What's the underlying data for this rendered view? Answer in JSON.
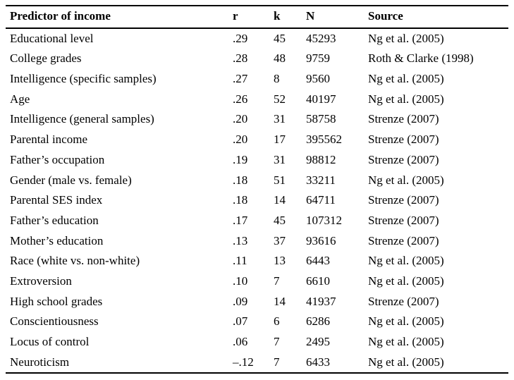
{
  "table": {
    "headers": [
      "Predictor of income",
      "r",
      "k",
      "N",
      "Source"
    ],
    "rows": [
      {
        "predictor": "Educational level",
        "r": ".29",
        "k": "45",
        "n": "45293",
        "source": "Ng et al. (2005)"
      },
      {
        "predictor": "College grades",
        "r": ".28",
        "k": "48",
        "n": "9759",
        "source": "Roth & Clarke (1998)"
      },
      {
        "predictor": "Intelligence (specific samples)",
        "r": ".27",
        "k": "8",
        "n": "9560",
        "source": "Ng et al. (2005)"
      },
      {
        "predictor": "Age",
        "r": ".26",
        "k": "52",
        "n": "40197",
        "source": "Ng et al. (2005)"
      },
      {
        "predictor": "Intelligence (general samples)",
        "r": ".20",
        "k": "31",
        "n": "58758",
        "source": "Strenze (2007)"
      },
      {
        "predictor": "Parental income",
        "r": ".20",
        "k": "17",
        "n": "395562",
        "source": "Strenze (2007)"
      },
      {
        "predictor": "Father’s occupation",
        "r": ".19",
        "k": "31",
        "n": "98812",
        "source": "Strenze (2007)"
      },
      {
        "predictor": "Gender (male vs. female)",
        "r": ".18",
        "k": "51",
        "n": "33211",
        "source": "Ng et al. (2005)"
      },
      {
        "predictor": "Parental SES index",
        "r": ".18",
        "k": "14",
        "n": "64711",
        "source": "Strenze (2007)"
      },
      {
        "predictor": "Father’s education",
        "r": ".17",
        "k": "45",
        "n": "107312",
        "source": "Strenze (2007)"
      },
      {
        "predictor": "Mother’s education",
        "r": ".13",
        "k": "37",
        "n": "93616",
        "source": "Strenze (2007)"
      },
      {
        "predictor": "Race (white vs. non-white)",
        "r": ".11",
        "k": "13",
        "n": "6443",
        "source": "Ng et al. (2005)"
      },
      {
        "predictor": "Extroversion",
        "r": ".10",
        "k": "7",
        "n": "6610",
        "source": "Ng et al. (2005)"
      },
      {
        "predictor": "High school grades",
        "r": ".09",
        "k": "14",
        "n": "41937",
        "source": "Strenze (2007)"
      },
      {
        "predictor": "Conscientiousness",
        "r": ".07",
        "k": "6",
        "n": "6286",
        "source": "Ng et al. (2005)"
      },
      {
        "predictor": "Locus of control",
        "r": ".06",
        "k": "7",
        "n": "2495",
        "source": "Ng et al. (2005)"
      },
      {
        "predictor": "Neuroticism",
        "r": "–.12",
        "k": "7",
        "n": "6433",
        "source": "Ng et al. (2005)"
      }
    ]
  }
}
